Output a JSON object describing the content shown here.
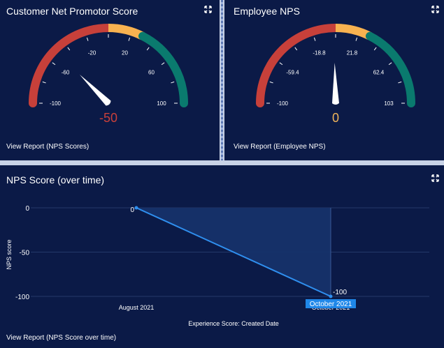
{
  "customer_nps": {
    "title": "Customer Net Promotor Score",
    "value_label": "-50",
    "value": -50,
    "min": -100,
    "max": 100,
    "ticks": [
      "-100",
      "-60",
      "-20",
      "20",
      "60",
      "100"
    ],
    "link": "View Report (NPS Scores)",
    "value_color": "#c9403a"
  },
  "employee_nps": {
    "title": "Employee NPS",
    "value_label": "0",
    "value": 0,
    "min": -100,
    "max": 103,
    "ticks": [
      "-100",
      "-59.4",
      "-18.8",
      "21.8",
      "62.4",
      "103"
    ],
    "link": "View Report (Employee NPS)",
    "value_color": "#f0b45a"
  },
  "gauge_colors": {
    "red": "#c7403a",
    "yellow": "#f8b250",
    "green": "#0a7a6e"
  },
  "nps_over_time": {
    "title": "NPS Score (over time)",
    "link": "View Report (NPS Score over time)",
    "tooltip": "October 2021",
    "chart_data": {
      "type": "area",
      "categories": [
        "August 2021",
        "October 2021"
      ],
      "values": [
        0,
        -100
      ],
      "data_labels": [
        "0",
        "-100"
      ],
      "xlabel": "Experience Score: Created Date",
      "ylabel": "NPS score",
      "ylim": [
        -100,
        0
      ],
      "yticks": [
        "0",
        "-50",
        "-100"
      ],
      "line_color": "#2f8fef"
    }
  }
}
